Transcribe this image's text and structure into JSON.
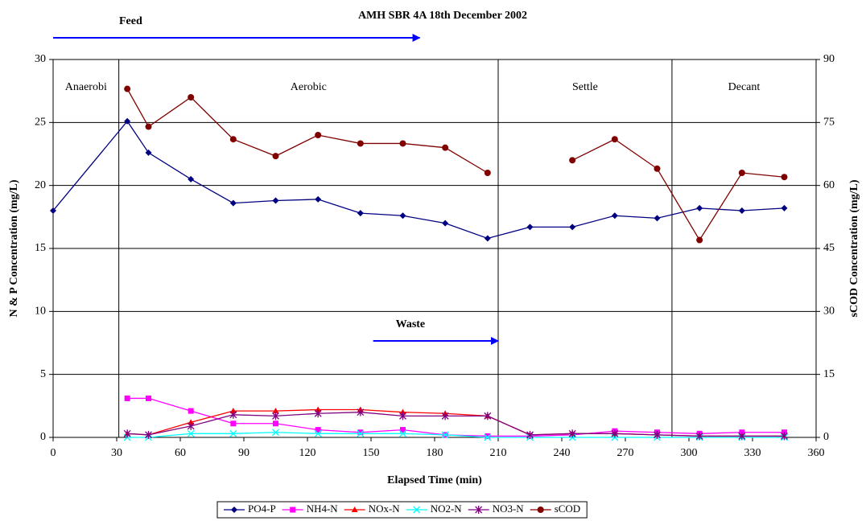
{
  "chart_data": {
    "type": "line",
    "title": "AMH SBR 4A 18th December 2002",
    "x_label": "Elapsed Time (min)",
    "y_label": "N & P Concentration (mg/L)",
    "y2_label": "sCOD Concentration (mg/L)",
    "x": [
      0,
      35,
      45,
      65,
      85,
      105,
      125,
      145,
      165,
      185,
      205,
      225,
      245,
      265,
      285,
      305,
      325,
      345
    ],
    "xlim": [
      0,
      360
    ],
    "xticks": [
      0,
      30,
      60,
      90,
      120,
      150,
      180,
      210,
      240,
      270,
      300,
      330,
      360
    ],
    "ylim": [
      0,
      30
    ],
    "yticks": [
      0,
      5,
      10,
      15,
      20,
      25,
      30
    ],
    "y2lim": [
      0,
      90
    ],
    "y2ticks": [
      0,
      15,
      30,
      45,
      60,
      75,
      90
    ],
    "grid": true,
    "legend": "bottom",
    "series": [
      {
        "name": "PO4-P",
        "color": "#000080",
        "marker": "diamond",
        "values": [
          18.0,
          25.1,
          22.6,
          20.5,
          18.6,
          18.8,
          18.9,
          17.8,
          17.6,
          17.0,
          15.8,
          16.7,
          16.7,
          17.6,
          17.4,
          18.2,
          18.0,
          18.2
        ]
      },
      {
        "name": "NH4-N",
        "color": "#FF00FF",
        "marker": "square",
        "values": [
          null,
          3.1,
          3.1,
          2.1,
          1.1,
          1.1,
          0.6,
          0.4,
          0.6,
          0.2,
          0.1,
          0.1,
          0.2,
          0.5,
          0.4,
          0.3,
          0.4,
          0.4
        ]
      },
      {
        "name": "NOx-N",
        "color": "#FF0000",
        "marker": "triangle",
        "values": [
          null,
          0.3,
          0.2,
          1.2,
          2.1,
          2.1,
          2.2,
          2.2,
          2.0,
          1.9,
          1.7,
          0.2,
          0.3,
          0.3,
          0.2,
          0.1,
          0.1,
          0.1
        ]
      },
      {
        "name": "NO2-N",
        "color": "#00FFFF",
        "marker": "cross",
        "values": [
          null,
          0.0,
          0.0,
          0.3,
          0.3,
          0.4,
          0.3,
          0.3,
          0.3,
          0.2,
          0.0,
          0.0,
          0.0,
          0.0,
          0.0,
          0.0,
          0.0,
          0.0
        ]
      },
      {
        "name": "NO3-N",
        "color": "#800080",
        "marker": "star",
        "values": [
          null,
          0.3,
          0.2,
          0.9,
          1.8,
          1.7,
          1.9,
          2.0,
          1.7,
          1.7,
          1.7,
          0.2,
          0.3,
          0.3,
          0.2,
          0.1,
          0.1,
          0.1
        ]
      },
      {
        "name": "sCOD",
        "color": "#800000",
        "marker": "circle",
        "axis": "y2",
        "values": [
          null,
          83,
          74,
          81,
          71,
          67,
          72,
          70,
          70,
          69,
          63,
          null,
          66,
          71,
          64,
          47,
          63,
          62
        ]
      }
    ],
    "phases": [
      {
        "label": "Anaerobi",
        "start": 0,
        "end": 31
      },
      {
        "label": "Aerobic",
        "start": 31,
        "end": 210
      },
      {
        "label": "Settle",
        "start": 210,
        "end": 292
      },
      {
        "label": "Decant",
        "start": 292,
        "end": 360
      }
    ],
    "arrows": [
      {
        "text": "Feed",
        "x": [
          0,
          173
        ],
        "color": "#0000FF"
      },
      {
        "text": "Waste",
        "x": [
          151,
          210
        ],
        "color": "#0000FF"
      }
    ]
  }
}
